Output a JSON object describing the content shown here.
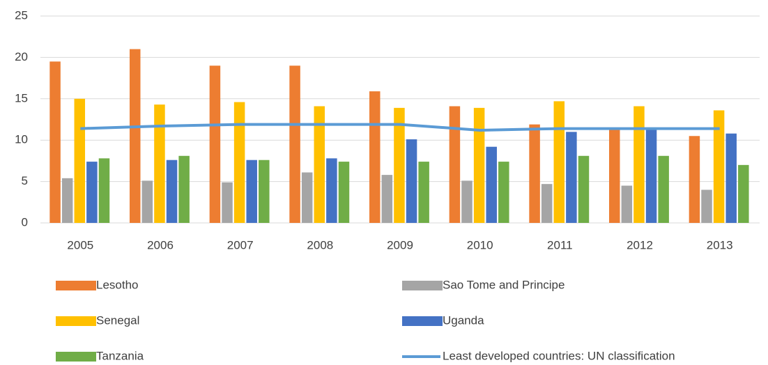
{
  "chart_data": {
    "type": "bar",
    "categories": [
      "2005",
      "2006",
      "2007",
      "2008",
      "2009",
      "2010",
      "2011",
      "2012",
      "2013"
    ],
    "series": [
      {
        "name": "Lesotho",
        "color": "#ED7D31",
        "values": [
          19.5,
          21.0,
          19.0,
          19.0,
          15.9,
          14.1,
          11.9,
          11.4,
          10.5
        ]
      },
      {
        "name": "Sao Tome and Principe",
        "color": "#A5A5A5",
        "values": [
          5.4,
          5.1,
          4.9,
          6.1,
          5.8,
          5.1,
          4.7,
          4.5,
          4.0
        ]
      },
      {
        "name": "Senegal",
        "color": "#FFC000",
        "values": [
          15.0,
          14.3,
          14.6,
          14.1,
          13.9,
          13.9,
          14.7,
          14.1,
          13.6
        ]
      },
      {
        "name": "Uganda",
        "color": "#4472C4",
        "values": [
          7.4,
          7.6,
          7.6,
          7.8,
          10.1,
          9.2,
          11.0,
          11.5,
          10.8
        ]
      },
      {
        "name": "Tanzania",
        "color": "#70AD47",
        "values": [
          7.8,
          8.1,
          7.6,
          7.4,
          7.4,
          7.4,
          8.1,
          8.1,
          7.0
        ]
      },
      {
        "name": "Least developed countries: UN classification",
        "color": "#5B9BD5",
        "type": "line",
        "values": [
          11.4,
          11.7,
          11.9,
          11.9,
          11.9,
          11.2,
          11.4,
          11.4,
          11.4
        ]
      }
    ],
    "ylim": [
      0,
      25
    ],
    "yticks": [
      0,
      5,
      10,
      15,
      20,
      25
    ],
    "grid": true,
    "legend": "bottom"
  }
}
